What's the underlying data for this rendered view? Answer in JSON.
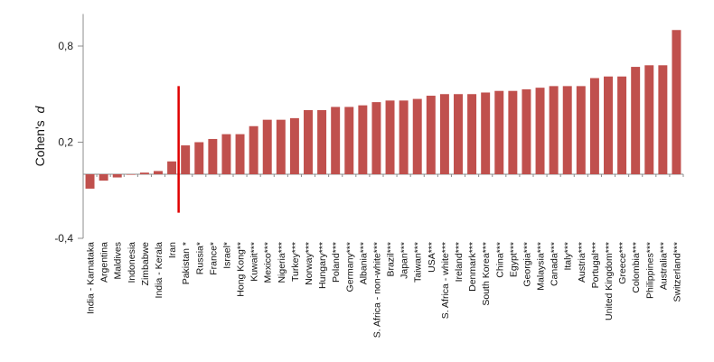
{
  "chart_data": {
    "type": "bar",
    "ylabel": "Cohen's",
    "ylabel_italic": "d",
    "yticks": [
      "-0,4",
      "0,2",
      "0,8"
    ],
    "ytick_values": [
      -0.4,
      0.2,
      0.8
    ],
    "ylim": [
      -0.4,
      1.0
    ],
    "bar_color": "#c0504d",
    "marker_color": "#e00000",
    "marker_after_category": "Iran",
    "marker_range": [
      -0.24,
      0.55
    ],
    "categories": [
      "India - Karnataka",
      "Argentina",
      "Maldives",
      "Indonesia",
      "Zimbabwe",
      "India - Kerala",
      "Iran",
      "Pakistan *",
      "Russia*",
      "France*",
      "Israel*",
      "Hong Kong**",
      "Kuwait***",
      "Mexico***",
      "Nigeria***",
      "Turkey***",
      "Norway***",
      "Hungary***",
      "Poland***",
      "Germany***",
      "Albania***",
      "S. Africa - non-white***",
      "Brazil***",
      "Japan***",
      "Taiwan***",
      "USA***",
      "S. Africa - white***",
      "Ireland***",
      "Denmark***",
      "South Korea***",
      "China***",
      "Egypt***",
      "Georgia***",
      "Malaysia***",
      "Canada***",
      "Italy***",
      "Austria***",
      "Portugal***",
      "United Kingdom***",
      "Greece***",
      "Colombia***",
      "Philippines***",
      "Australia***",
      "Switzerland***"
    ],
    "values": [
      -0.09,
      -0.04,
      -0.02,
      0.0,
      0.01,
      0.02,
      0.08,
      0.18,
      0.2,
      0.22,
      0.25,
      0.25,
      0.3,
      0.34,
      0.34,
      0.35,
      0.4,
      0.4,
      0.42,
      0.42,
      0.43,
      0.45,
      0.46,
      0.46,
      0.47,
      0.49,
      0.5,
      0.5,
      0.5,
      0.51,
      0.52,
      0.52,
      0.53,
      0.54,
      0.55,
      0.55,
      0.55,
      0.6,
      0.61,
      0.61,
      0.67,
      0.68,
      0.68,
      0.9
    ]
  }
}
